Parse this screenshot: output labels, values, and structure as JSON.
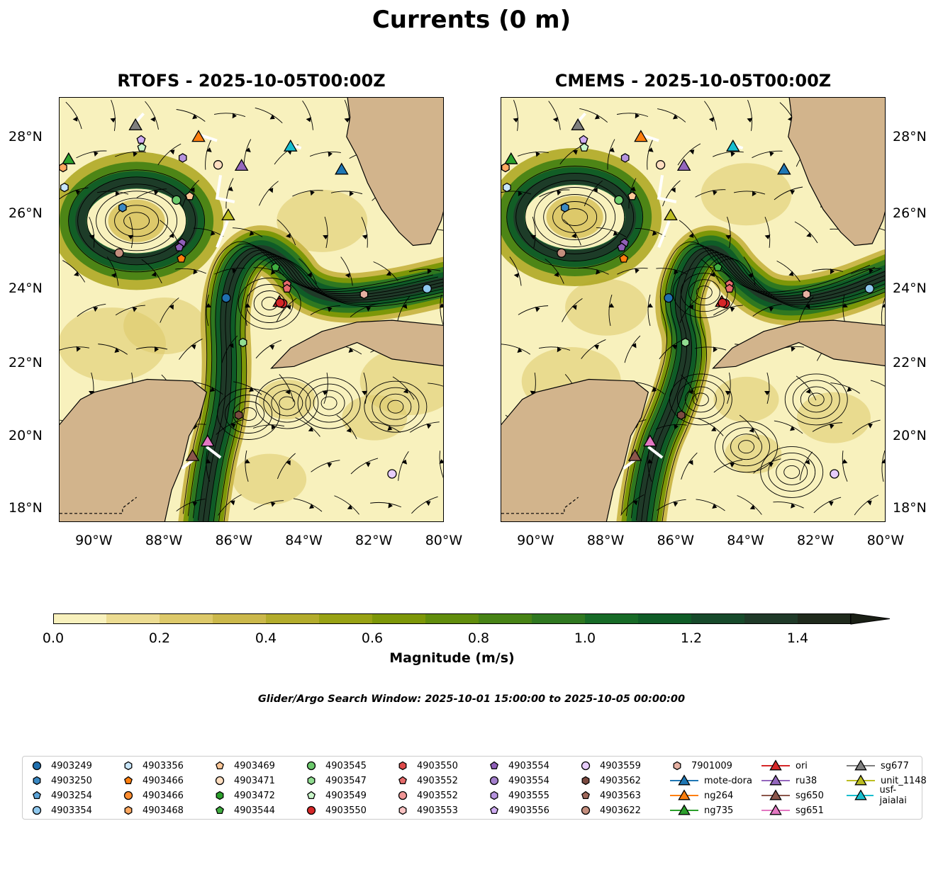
{
  "title": "Currents (0 m)",
  "panels": [
    {
      "title": "RTOFS - 2025-10-05T00:00Z"
    },
    {
      "title": "CMEMS - 2025-10-05T00:00Z"
    }
  ],
  "axes": {
    "lat_ticks": [
      "18°N",
      "20°N",
      "22°N",
      "24°N",
      "26°N",
      "28°N"
    ],
    "lon_ticks": [
      "90°W",
      "88°W",
      "86°W",
      "84°W",
      "82°W",
      "80°W"
    ]
  },
  "colorbar": {
    "label": "Magnitude (m/s)",
    "ticks": [
      "0.0",
      "0.2",
      "0.4",
      "0.6",
      "0.8",
      "1.0",
      "1.2",
      "1.4"
    ],
    "colors": [
      "#f8f1bd",
      "#ecdc92",
      "#ddc96a",
      "#cbb84b",
      "#b3ac2c",
      "#98a214",
      "#7d9708",
      "#618d0c",
      "#478315",
      "#2f7820",
      "#176b27",
      "#0f5c27",
      "#174a2b",
      "#1f3a28",
      "#1f2a1c"
    ],
    "extend_color": "#1a1f15"
  },
  "search_window": "Glider/Argo Search Window: 2025-10-01 15:00:00 to 2025-10-05 00:00:00",
  "legend": [
    {
      "label": "4903249",
      "shape": "circle",
      "color": "#1f6fae"
    },
    {
      "label": "4903250",
      "shape": "hexagon",
      "color": "#3a88c2"
    },
    {
      "label": "4903254",
      "shape": "pentagon",
      "color": "#5ca4d8"
    },
    {
      "label": "4903354",
      "shape": "circle",
      "color": "#8fc8ee"
    },
    {
      "label": "4903356",
      "shape": "hexagon",
      "color": "#c8e6fb"
    },
    {
      "label": "4903466",
      "shape": "pentagon",
      "color": "#ff7f0e"
    },
    {
      "label": "4903466",
      "shape": "circle",
      "color": "#ff8d30"
    },
    {
      "label": "4903468",
      "shape": "hexagon",
      "color": "#ffa860"
    },
    {
      "label": "4903469",
      "shape": "pentagon",
      "color": "#ffc898"
    },
    {
      "label": "4903471",
      "shape": "circle",
      "color": "#ffdec0"
    },
    {
      "label": "4903472",
      "shape": "hexagon",
      "color": "#2ca02c"
    },
    {
      "label": "4903544",
      "shape": "pentagon",
      "color": "#40ad40"
    },
    {
      "label": "4903545",
      "shape": "circle",
      "color": "#6cc96c"
    },
    {
      "label": "4903547",
      "shape": "hexagon",
      "color": "#90dc90"
    },
    {
      "label": "4903549",
      "shape": "pentagon",
      "color": "#c9f6c9"
    },
    {
      "label": "4903550",
      "shape": "circle",
      "color": "#d62728"
    },
    {
      "label": "4903550",
      "shape": "hexagon",
      "color": "#de4a4a"
    },
    {
      "label": "4903552",
      "shape": "pentagon",
      "color": "#e66b6b"
    },
    {
      "label": "4903552",
      "shape": "circle",
      "color": "#f09696"
    },
    {
      "label": "4903553",
      "shape": "hexagon",
      "color": "#fbc3c3"
    },
    {
      "label": "4903554",
      "shape": "pentagon",
      "color": "#8f5fb8"
    },
    {
      "label": "4903554",
      "shape": "circle",
      "color": "#a47fcd"
    },
    {
      "label": "4903555",
      "shape": "hexagon",
      "color": "#b693de"
    },
    {
      "label": "4903556",
      "shape": "pentagon",
      "color": "#cfacf2"
    },
    {
      "label": "4903559",
      "shape": "circle",
      "color": "#e7cdfb"
    },
    {
      "label": "4903562",
      "shape": "hexagon",
      "color": "#7b4a40"
    },
    {
      "label": "4903563",
      "shape": "pentagon",
      "color": "#a0695c"
    },
    {
      "label": "4903622",
      "shape": "circle",
      "color": "#c48e7e"
    },
    {
      "label": "7901009",
      "shape": "hexagon",
      "color": "#e6b0a2"
    },
    {
      "label": "mote-dora",
      "shape": "triangle",
      "color": "#1f77b4"
    },
    {
      "label": "ng264",
      "shape": "triangle",
      "color": "#ff7f0e"
    },
    {
      "label": "ng735",
      "shape": "triangle",
      "color": "#2ca02c"
    },
    {
      "label": "ori",
      "shape": "triangle",
      "color": "#d62728"
    },
    {
      "label": "ru38",
      "shape": "triangle",
      "color": "#9467bd"
    },
    {
      "label": "sg650",
      "shape": "triangle",
      "color": "#8c564b"
    },
    {
      "label": "sg651",
      "shape": "triangle",
      "color": "#e377c2"
    },
    {
      "label": "sg677",
      "shape": "triangle",
      "color": "#7f7f7f"
    },
    {
      "label": "unit_1148",
      "shape": "triangle",
      "color": "#bcbd22"
    },
    {
      "label": "usf-jaialai",
      "shape": "triangle",
      "color": "#17becf"
    }
  ],
  "chart_data": {
    "type": "map",
    "lon_range": [
      -91,
      -80
    ],
    "lat_range": [
      17.8,
      29.1
    ],
    "land_color": "#d2b48c",
    "markers": [
      {
        "id": "sg677",
        "lon": -88.83,
        "lat": 28.3
      },
      {
        "id": "4903556",
        "lon": -88.67,
        "lat": 27.92
      },
      {
        "id": "4903549",
        "lon": -88.65,
        "lat": 27.72
      },
      {
        "id": "ng264",
        "lon": -87.03,
        "lat": 28.0
      },
      {
        "id": "4903555",
        "lon": -87.48,
        "lat": 27.45
      },
      {
        "id": "4903471",
        "lon": -86.47,
        "lat": 27.27
      },
      {
        "id": "ru38",
        "lon": -85.8,
        "lat": 27.25
      },
      {
        "id": "usf-jaialai",
        "lon": -84.4,
        "lat": 27.75
      },
      {
        "id": "mote-dora",
        "lon": -82.94,
        "lat": 27.15
      },
      {
        "id": "ng735",
        "lon": -90.74,
        "lat": 27.42
      },
      {
        "id": "4903468",
        "lon": -90.9,
        "lat": 27.2
      },
      {
        "id": "4903356",
        "lon": -90.86,
        "lat": 26.68
      },
      {
        "id": "4903545",
        "lon": -87.66,
        "lat": 26.35
      },
      {
        "id": "4903469",
        "lon": -87.28,
        "lat": 26.45
      },
      {
        "id": "4903250",
        "lon": -89.2,
        "lat": 26.15
      },
      {
        "id": "unit_1148",
        "lon": -86.18,
        "lat": 25.95
      },
      {
        "id": "4903554",
        "lon": -87.5,
        "lat": 25.22
      },
      {
        "id": "4903554",
        "lon": -87.58,
        "lat": 25.1
      },
      {
        "id": "4903466",
        "lon": -87.52,
        "lat": 24.8
      },
      {
        "id": "4903622",
        "lon": -89.3,
        "lat": 24.95
      },
      {
        "id": "4903544",
        "lon": -84.83,
        "lat": 24.57
      },
      {
        "id": "4903552",
        "lon": -84.5,
        "lat": 24.12
      },
      {
        "id": "4903552",
        "lon": -84.5,
        "lat": 24.0
      },
      {
        "id": "ori",
        "lon": -84.72,
        "lat": 23.65
      },
      {
        "id": "4903550",
        "lon": -84.62,
        "lat": 23.6
      },
      {
        "id": "4903550",
        "lon": -84.7,
        "lat": 23.62
      },
      {
        "id": "7901009",
        "lon": -82.3,
        "lat": 23.85
      },
      {
        "id": "4903354",
        "lon": -80.5,
        "lat": 24.0
      },
      {
        "id": "4903249",
        "lon": -86.24,
        "lat": 23.75
      },
      {
        "id": "4903547",
        "lon": -85.76,
        "lat": 22.55
      },
      {
        "id": "4903562",
        "lon": -85.88,
        "lat": 20.57
      },
      {
        "id": "sg651",
        "lon": -86.77,
        "lat": 19.85
      },
      {
        "id": "sg650",
        "lon": -87.2,
        "lat": 19.45
      },
      {
        "id": "4903559",
        "lon": -81.5,
        "lat": 18.95
      }
    ]
  }
}
